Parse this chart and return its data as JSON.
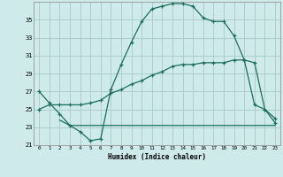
{
  "background_color": "#ceeaea",
  "grid_color": "#aecece",
  "line_color": "#1a6e5e",
  "xlabel": "Humidex (Indice chaleur)",
  "xlim": [
    -0.5,
    23.5
  ],
  "ylim": [
    21,
    37
  ],
  "yticks": [
    21,
    23,
    25,
    27,
    29,
    31,
    33,
    35
  ],
  "xticks": [
    0,
    1,
    2,
    3,
    4,
    5,
    6,
    7,
    8,
    9,
    10,
    11,
    12,
    13,
    14,
    15,
    16,
    17,
    18,
    19,
    20,
    21,
    22,
    23
  ],
  "series1_x": [
    0,
    1,
    2,
    3,
    4,
    5,
    6,
    7,
    8,
    9,
    10,
    11,
    12,
    13,
    14,
    15,
    16,
    17,
    18,
    19,
    20,
    21,
    22,
    23
  ],
  "series1_y": [
    27.0,
    25.7,
    24.5,
    23.2,
    22.5,
    21.5,
    21.7,
    27.2,
    30.0,
    32.5,
    34.8,
    36.2,
    36.5,
    36.8,
    36.8,
    36.5,
    35.2,
    34.8,
    34.8,
    33.2,
    30.5,
    25.5,
    25.0,
    23.5
  ],
  "series2_x": [
    2,
    3,
    4,
    5,
    6,
    7,
    8,
    9,
    10,
    11,
    12,
    13,
    14,
    15,
    16,
    17,
    18,
    19,
    20,
    21,
    22,
    23
  ],
  "series2_y": [
    23.8,
    23.2,
    23.2,
    23.2,
    23.2,
    23.2,
    23.2,
    23.2,
    23.2,
    23.2,
    23.2,
    23.2,
    23.2,
    23.2,
    23.2,
    23.2,
    23.2,
    23.2,
    23.2,
    23.2,
    23.2,
    23.2
  ],
  "series3_x": [
    0,
    1,
    2,
    3,
    4,
    5,
    6,
    7,
    8,
    9,
    10,
    11,
    12,
    13,
    14,
    15,
    16,
    17,
    18,
    19,
    20,
    21,
    22,
    23
  ],
  "series3_y": [
    25.0,
    25.5,
    25.5,
    25.5,
    25.5,
    25.7,
    26.0,
    26.8,
    27.2,
    27.8,
    28.2,
    28.8,
    29.2,
    29.8,
    30.0,
    30.0,
    30.2,
    30.2,
    30.2,
    30.5,
    30.5,
    30.2,
    25.0,
    24.0
  ]
}
